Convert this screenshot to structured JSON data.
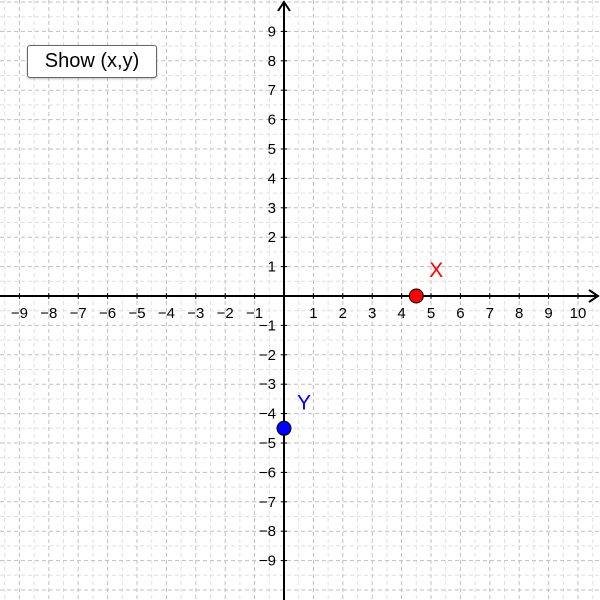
{
  "toolbar": {
    "show_button_label": "Show (x,y)"
  },
  "axes": {
    "x_ticks": [
      "−9",
      "−8",
      "−7",
      "−6",
      "−5",
      "−4",
      "−3",
      "−2",
      "−1",
      "1",
      "2",
      "3",
      "4",
      "5",
      "6",
      "7",
      "8",
      "9",
      "10"
    ],
    "x_tick_values": [
      -9,
      -8,
      -7,
      -6,
      -5,
      -4,
      -3,
      -2,
      -1,
      1,
      2,
      3,
      4,
      5,
      6,
      7,
      8,
      9,
      10
    ],
    "y_ticks": [
      "9",
      "8",
      "7",
      "6",
      "5",
      "4",
      "3",
      "2",
      "1",
      "−1",
      "−2",
      "−3",
      "−4",
      "−5",
      "−6",
      "−7",
      "−8",
      "−9"
    ],
    "y_tick_values": [
      9,
      8,
      7,
      6,
      5,
      4,
      3,
      2,
      1,
      -1,
      -2,
      -3,
      -4,
      -5,
      -6,
      -7,
      -8,
      -9
    ],
    "x_range": [
      -9.7,
      10.7
    ],
    "y_range": [
      -10.2,
      10.2
    ],
    "grid": "dashed",
    "major_grid_step": 1,
    "minor_grid_step": 0.5
  },
  "points": [
    {
      "label": "X",
      "x": 4.5,
      "y": 0,
      "color": "#ff0000"
    },
    {
      "label": "Y",
      "x": 0,
      "y": -4.5,
      "color": "#0000ff"
    }
  ],
  "colors": {
    "axis": "#000000",
    "grid_major": "#c0c0c0",
    "grid_minor": "#e0e0e0",
    "background": "#ffffff"
  }
}
